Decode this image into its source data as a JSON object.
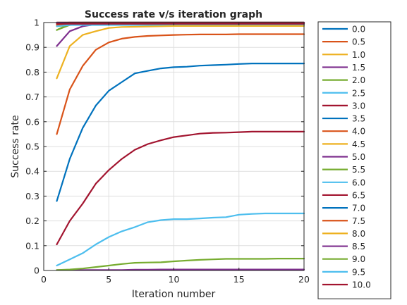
{
  "chart_data": {
    "type": "line",
    "title": "Success rate v/s iteration graph",
    "xlabel": "Iteration number",
    "ylabel": "Success rate",
    "xlim": [
      0,
      20
    ],
    "ylim": [
      0,
      1
    ],
    "xticks": [
      0,
      5,
      10,
      15,
      20
    ],
    "yticks": [
      0,
      0.1,
      0.2,
      0.3,
      0.4,
      0.5,
      0.6,
      0.7,
      0.8,
      0.9,
      1
    ],
    "xtick_labels": [
      "0",
      "5",
      "10",
      "15",
      "20"
    ],
    "ytick_labels": [
      "0",
      "0.1",
      "0.2",
      "0.3",
      "0.4",
      "0.5",
      "0.6",
      "0.7",
      "0.8",
      "0.9",
      "1"
    ],
    "grid": true,
    "legend_position": "outside-right",
    "x": [
      1,
      2,
      3,
      4,
      5,
      6,
      7,
      8,
      9,
      10,
      11,
      12,
      13,
      14,
      15,
      16,
      17,
      18,
      19,
      20
    ],
    "series": [
      {
        "name": "0.0",
        "color": "#0072BD",
        "values": [
          1,
          1,
          1,
          1,
          1,
          1,
          1,
          1,
          1,
          1,
          1,
          1,
          1,
          1,
          1,
          1,
          1,
          1,
          1,
          1
        ]
      },
      {
        "name": "0.5",
        "color": "#D95319",
        "values": [
          1,
          1,
          1,
          1,
          1,
          1,
          1,
          1,
          1,
          1,
          1,
          1,
          1,
          1,
          1,
          1,
          1,
          1,
          1,
          1
        ]
      },
      {
        "name": "1.0",
        "color": "#EDB120",
        "values": [
          1,
          1,
          1,
          1,
          1,
          1,
          1,
          1,
          1,
          1,
          1,
          1,
          1,
          1,
          1,
          1,
          1,
          1,
          1,
          1
        ]
      },
      {
        "name": "1.5",
        "color": "#7E2F8E",
        "values": [
          1,
          1,
          1,
          1,
          1,
          1,
          1,
          1,
          1,
          1,
          1,
          1,
          1,
          1,
          1,
          1,
          1,
          1,
          1,
          1
        ]
      },
      {
        "name": "2.0",
        "color": "#77AC30",
        "values": [
          0.97,
          0.995,
          1,
          1,
          1,
          1,
          1,
          1,
          1,
          1,
          1,
          1,
          1,
          1,
          1,
          1,
          1,
          1,
          1,
          1
        ]
      },
      {
        "name": "2.5",
        "color": "#4DBEEE",
        "values": [
          0.995,
          1,
          1,
          1,
          1,
          1,
          1,
          1,
          1,
          1,
          1,
          1,
          1,
          1,
          1,
          1,
          1,
          1,
          1,
          1
        ]
      },
      {
        "name": "3.0",
        "color": "#A2142F",
        "values": [
          0.998,
          1,
          1,
          1,
          1,
          1,
          1,
          1,
          1,
          1,
          1,
          1,
          1,
          1,
          1,
          1,
          1,
          1,
          1,
          1
        ]
      },
      {
        "name": "3.5",
        "color": "#0072BD",
        "values": [
          0.995,
          0.997,
          0.998,
          0.998,
          0.998,
          0.998,
          0.998,
          0.998,
          0.998,
          0.998,
          0.998,
          0.998,
          0.998,
          0.998,
          0.998,
          0.998,
          0.998,
          0.998,
          0.998,
          0.998
        ]
      },
      {
        "name": "4.0",
        "color": "#D95319",
        "values": [
          0.99,
          0.995,
          0.995,
          0.995,
          0.995,
          0.995,
          0.995,
          0.995,
          0.995,
          0.995,
          0.995,
          0.995,
          0.995,
          0.995,
          0.995,
          0.995,
          0.995,
          0.995,
          0.995,
          0.995
        ]
      },
      {
        "name": "4.5",
        "color": "#EDB120",
        "values": [
          0.985,
          0.99,
          0.992,
          0.993,
          0.993,
          0.993,
          0.993,
          0.993,
          0.993,
          0.993,
          0.993,
          0.993,
          0.993,
          0.993,
          0.993,
          0.993,
          0.993,
          0.993,
          0.993,
          0.993
        ]
      },
      {
        "name": "5.0",
        "color": "#7E2F8E",
        "values": [
          0.905,
          0.965,
          0.985,
          0.993,
          0.996,
          0.997,
          0.998,
          0.998,
          0.998,
          0.998,
          0.998,
          0.998,
          0.998,
          0.998,
          0.998,
          0.998,
          0.998,
          0.998,
          0.998,
          0.998
        ]
      },
      {
        "name": "5.5",
        "color": "#77AC30",
        "values": [
          0.97,
          0.99,
          0.995,
          0.995,
          0.995,
          0.995,
          0.995,
          0.995,
          0.995,
          0.995,
          0.995,
          0.995,
          0.995,
          0.995,
          0.995,
          0.995,
          0.995,
          0.995,
          0.995,
          0.995
        ]
      },
      {
        "name": "6.0",
        "color": "#4DBEEE",
        "values": [
          0.985,
          0.99,
          0.99,
          0.99,
          0.99,
          0.99,
          0.99,
          0.99,
          0.99,
          0.99,
          0.99,
          0.99,
          0.99,
          0.99,
          0.99,
          0.99,
          0.99,
          0.99,
          0.99,
          0.99
        ]
      },
      {
        "name": "6.5",
        "color": "#A2142F",
        "values": [
          0.995,
          0.995,
          0.995,
          0.995,
          0.995,
          0.995,
          0.995,
          0.995,
          0.995,
          0.995,
          0.995,
          0.995,
          0.995,
          0.995,
          0.995,
          0.995,
          0.995,
          0.995,
          0.995,
          0.995
        ]
      },
      {
        "name": "7.0",
        "color": "#0072BD",
        "values": [
          0.28,
          0.45,
          0.575,
          0.665,
          0.725,
          0.76,
          0.795,
          0.805,
          0.815,
          0.82,
          0.822,
          0.826,
          0.828,
          0.83,
          0.833,
          0.835,
          0.835,
          0.835,
          0.835,
          0.835
        ]
      },
      {
        "name": "7.5",
        "color": "#D95319",
        "values": [
          0.55,
          0.73,
          0.825,
          0.89,
          0.92,
          0.935,
          0.942,
          0.946,
          0.948,
          0.95,
          0.951,
          0.952,
          0.952,
          0.952,
          0.953,
          0.953,
          0.953,
          0.953,
          0.953,
          0.953
        ]
      },
      {
        "name": "8.0",
        "color": "#EDB120",
        "values": [
          0.775,
          0.905,
          0.95,
          0.965,
          0.978,
          0.982,
          0.983,
          0.984,
          0.985,
          0.986,
          0.986,
          0.986,
          0.986,
          0.986,
          0.986,
          0.986,
          0.986,
          0.986,
          0.986,
          0.986
        ]
      },
      {
        "name": "8.5",
        "color": "#7E2F8E",
        "values": [
          0.002,
          0.002,
          0.002,
          0.002,
          0.002,
          0.002,
          0.003,
          0.003,
          0.004,
          0.004,
          0.004,
          0.004,
          0.004,
          0.004,
          0.004,
          0.004,
          0.004,
          0.004,
          0.004,
          0.004
        ]
      },
      {
        "name": "9.0",
        "color": "#77AC30",
        "values": [
          0.002,
          0.004,
          0.008,
          0.014,
          0.02,
          0.026,
          0.031,
          0.032,
          0.033,
          0.037,
          0.04,
          0.043,
          0.045,
          0.047,
          0.047,
          0.047,
          0.047,
          0.048,
          0.048,
          0.048
        ]
      },
      {
        "name": "9.5",
        "color": "#4DBEEE",
        "values": [
          0.02,
          0.045,
          0.07,
          0.105,
          0.135,
          0.158,
          0.175,
          0.195,
          0.203,
          0.207,
          0.207,
          0.21,
          0.213,
          0.215,
          0.225,
          0.228,
          0.23,
          0.23,
          0.23,
          0.23
        ]
      },
      {
        "name": "10.0",
        "color": "#A2142F",
        "values": [
          0.105,
          0.2,
          0.27,
          0.35,
          0.405,
          0.45,
          0.487,
          0.51,
          0.525,
          0.538,
          0.545,
          0.552,
          0.555,
          0.556,
          0.558,
          0.56,
          0.56,
          0.56,
          0.56,
          0.56
        ]
      }
    ]
  }
}
